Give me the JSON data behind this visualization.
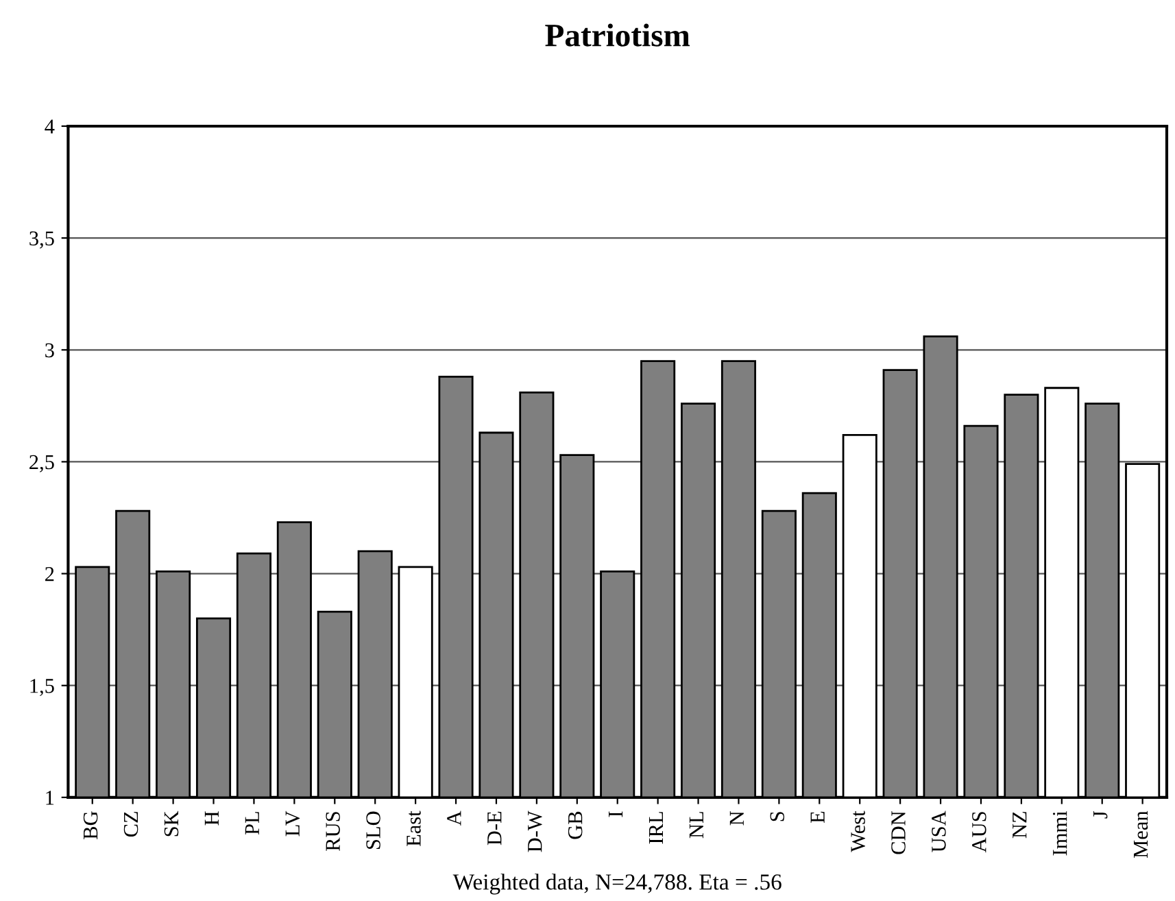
{
  "chart_data": {
    "type": "bar",
    "title": "Patriotism",
    "xlabel": "Weighted data, N=24,788. Eta = .56",
    "categories": [
      "BG",
      "CZ",
      "SK",
      "H",
      "PL",
      "LV",
      "RUS",
      "SLO",
      "East",
      "A",
      "D-E",
      "D-W",
      "GB",
      "I",
      "IRL",
      "NL",
      "N",
      "S",
      "E",
      "West",
      "CDN",
      "USA",
      "AUS",
      "NZ",
      "Immi",
      "J",
      "Mean"
    ],
    "values": [
      2.03,
      2.28,
      2.01,
      1.8,
      2.09,
      2.23,
      1.83,
      2.1,
      2.03,
      2.88,
      2.63,
      2.81,
      2.53,
      2.01,
      2.95,
      2.76,
      2.95,
      2.28,
      2.36,
      2.62,
      2.91,
      3.06,
      2.66,
      2.8,
      2.83,
      2.76,
      2.49
    ],
    "colors": [
      "#7f7f7f",
      "#7f7f7f",
      "#7f7f7f",
      "#7f7f7f",
      "#7f7f7f",
      "#7f7f7f",
      "#7f7f7f",
      "#7f7f7f",
      "#ffffff",
      "#7f7f7f",
      "#7f7f7f",
      "#7f7f7f",
      "#7f7f7f",
      "#7f7f7f",
      "#7f7f7f",
      "#7f7f7f",
      "#7f7f7f",
      "#7f7f7f",
      "#7f7f7f",
      "#ffffff",
      "#7f7f7f",
      "#7f7f7f",
      "#7f7f7f",
      "#7f7f7f",
      "#ffffff",
      "#7f7f7f",
      "#ffffff"
    ],
    "ylim": [
      1,
      4
    ],
    "yticks": [
      1,
      {
        "value": 1.5,
        "label": "1,5"
      },
      2,
      {
        "value": 2.5,
        "label": "2,5"
      },
      3,
      {
        "value": 3.5,
        "label": "3,5"
      },
      4
    ],
    "grid": "y",
    "legend": false
  }
}
